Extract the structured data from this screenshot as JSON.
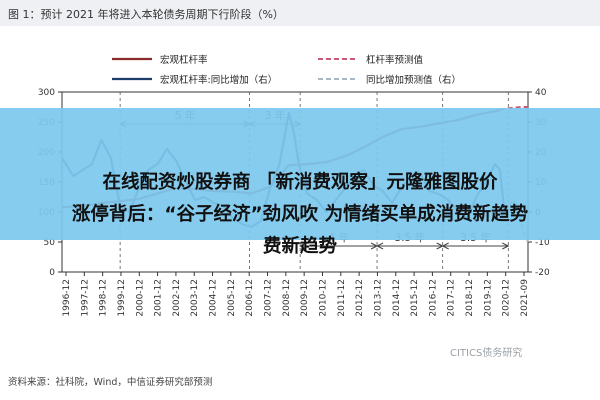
{
  "figure_title": "图 1：预计 2021 年将进入本轮债务周期下行阶段（%）",
  "source_note": "资料来源：社科院，Wind，中信证券研究部预测",
  "watermark": "CITICS债务研究",
  "overlay": {
    "line1": "在线配资炒股券商 「新消费观察」元隆雅图股价",
    "line2": "涨停背后：“谷子经济”劲风吹 为情绪买单成消费新趋势",
    "line3": "费新趋势"
  },
  "colors": {
    "main": "#8b2a2a",
    "yoy": "#1f3d6b",
    "forecast": "#c85a7a",
    "yoy_forecast": "#a9b7c7",
    "overlay": "#7dc8ee"
  },
  "chart_data": {
    "type": "line",
    "legend": [
      "宏观杠杆率",
      "杠杆率预测值",
      "宏观杠杆率:同比增加（右）",
      "同比增加预测值（右）"
    ],
    "legend_placement": "top",
    "annotations": [
      "5 年",
      "3 年",
      "4 年",
      "3.5 年",
      "3.5 年"
    ],
    "y_left": {
      "ticks": [
        0,
        50,
        100,
        150,
        200,
        250,
        300
      ],
      "range": [
        0,
        300
      ]
    },
    "y_right": {
      "ticks": [
        -20,
        -10,
        0,
        10,
        20,
        30,
        40
      ],
      "range": [
        -20,
        40
      ]
    },
    "x_ticks": [
      "1996-12",
      "1997-12",
      "1998-12",
      "1999-12",
      "2000-12",
      "2001-12",
      "2002-12",
      "2003-12",
      "2004-12",
      "2005-12",
      "2006-12",
      "2007-12",
      "2008-12",
      "2009-12",
      "2010-12",
      "2011-12",
      "2012-12",
      "2013-12",
      "2014-12",
      "2015-12",
      "2016-12",
      "2017-12",
      "2018-12",
      "2019-12",
      "2020-12",
      "2021-09"
    ],
    "series": [
      {
        "name": "宏观杠杆率",
        "axis": "left",
        "x": [
          1996.9,
          1998,
          1999,
          2000,
          2001,
          2002,
          2003,
          2004,
          2005,
          2006,
          2007,
          2008,
          2009,
          2010,
          2011,
          2012,
          2013,
          2014,
          2015,
          2016,
          2017,
          2018,
          2019,
          2020,
          2020.25
        ],
        "y": [
          108,
          110,
          115,
          118,
          122,
          131,
          140,
          138,
          135,
          134,
          131,
          142,
          178,
          180,
          183,
          193,
          208,
          225,
          238,
          242,
          248,
          253,
          262,
          268,
          270
        ]
      },
      {
        "name": "杠杆率预测值",
        "axis": "left",
        "dashed": true,
        "x": [
          2020.25,
          2020.5,
          2020.75,
          2021,
          2021.5,
          2021.75
        ],
        "y": [
          270,
          272,
          273,
          274,
          275,
          275
        ]
      },
      {
        "name": "宏观杠杆率:同比增加（右）",
        "axis": "right",
        "x": [
          1996.9,
          1997.5,
          1998,
          1998.5,
          1999,
          1999.5,
          2000,
          2000.5,
          2001,
          2001.5,
          2002,
          2002.5,
          2003,
          2003.5,
          2004,
          2004.5,
          2005,
          2005.5,
          2006,
          2006.5,
          2007,
          2007.5,
          2008,
          2008.5,
          2009,
          2009.25,
          2009.5,
          2009.75,
          2010,
          2010.5,
          2011,
          2011.5,
          2012,
          2012.5,
          2013,
          2013.5,
          2014,
          2014.5,
          2015,
          2015.5,
          2016,
          2016.5,
          2017,
          2017.5,
          2018,
          2018.5,
          2019,
          2019.5,
          2020,
          2020.25,
          2020.5
        ],
        "y": [
          18,
          12,
          14,
          16,
          24,
          18,
          2,
          0,
          8,
          14,
          16,
          21,
          17,
          10,
          4,
          5,
          3,
          2,
          -2,
          -4,
          -5,
          -3,
          8,
          16,
          33,
          27,
          17,
          10,
          6,
          4,
          0,
          4,
          8,
          12,
          14,
          9,
          7,
          3,
          8,
          12,
          13,
          7,
          6,
          4,
          0,
          -2,
          5,
          10,
          16,
          14,
          0
        ]
      },
      {
        "name": "同比增加预测值（右）",
        "axis": "right",
        "dashed": true,
        "x": [
          2020.5,
          2020.75,
          2021,
          2021.25,
          2021.5,
          2021.75
        ],
        "y": [
          0,
          2,
          4,
          0,
          -6,
          -10
        ]
      }
    ]
  }
}
